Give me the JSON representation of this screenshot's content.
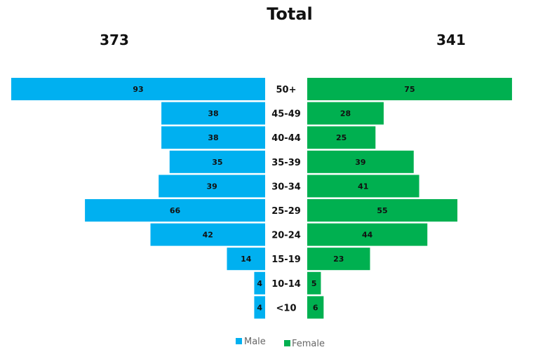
{
  "chart_data": {
    "type": "bar",
    "title": "Total",
    "totals": {
      "male": "373",
      "female": "341"
    },
    "categories": [
      "50+",
      "45-49",
      "40-44",
      "35-39",
      "30-34",
      "25-29",
      "20-24",
      "15-19",
      "10-14",
      "<10"
    ],
    "series": [
      {
        "name": "Male",
        "color": "#00b0f0",
        "values": [
          93,
          38,
          38,
          35,
          39,
          66,
          42,
          14,
          4,
          4
        ]
      },
      {
        "name": "Female",
        "color": "#00b050",
        "values": [
          75,
          28,
          25,
          39,
          41,
          55,
          44,
          23,
          5,
          6
        ]
      }
    ],
    "xlim": [
      0,
      93
    ],
    "legend_position": "bottom",
    "grid": false
  }
}
